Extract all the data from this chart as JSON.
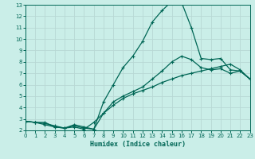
{
  "xlabel": "Humidex (Indice chaleur)",
  "bg_color": "#caeee8",
  "grid_color": "#b8d8d4",
  "line_color": "#006655",
  "xlim": [
    0,
    23
  ],
  "ylim": [
    2,
    13
  ],
  "xticks": [
    0,
    1,
    2,
    3,
    4,
    5,
    6,
    7,
    8,
    9,
    10,
    11,
    12,
    13,
    14,
    15,
    16,
    17,
    18,
    19,
    20,
    21,
    22,
    23
  ],
  "yticks": [
    2,
    3,
    4,
    5,
    6,
    7,
    8,
    9,
    10,
    11,
    12,
    13
  ],
  "curve_top_x": [
    0,
    1,
    2,
    3,
    4,
    5,
    6,
    7,
    8,
    9,
    10,
    11,
    12,
    13,
    14,
    15,
    16,
    17,
    18,
    19,
    20,
    21,
    22,
    23
  ],
  "curve_top_y": [
    2.8,
    2.7,
    2.7,
    2.3,
    2.2,
    2.4,
    2.2,
    2.1,
    4.5,
    6.0,
    7.5,
    8.5,
    9.8,
    11.5,
    12.5,
    13.3,
    13.2,
    11.0,
    8.3,
    8.2,
    8.3,
    7.3,
    7.2,
    6.5
  ],
  "curve_mid_x": [
    0,
    1,
    2,
    3,
    4,
    5,
    6,
    7,
    8,
    9,
    10,
    11,
    12,
    13,
    14,
    15,
    16,
    17,
    18,
    19,
    20,
    21,
    22,
    23
  ],
  "curve_mid_y": [
    2.8,
    2.7,
    2.6,
    2.4,
    2.2,
    2.3,
    2.1,
    2.7,
    3.5,
    4.2,
    4.8,
    5.2,
    5.5,
    5.8,
    6.2,
    6.5,
    6.8,
    7.0,
    7.2,
    7.4,
    7.6,
    7.8,
    7.3,
    6.5
  ],
  "curve_bot_x": [
    0,
    1,
    2,
    3,
    4,
    5,
    6,
    7,
    8,
    9,
    10,
    11,
    12,
    13,
    14,
    15,
    16,
    17,
    18,
    19,
    20,
    21,
    22,
    23
  ],
  "curve_bot_y": [
    2.8,
    2.7,
    2.5,
    2.3,
    2.2,
    2.5,
    2.3,
    2.1,
    3.5,
    4.5,
    5.0,
    5.4,
    5.8,
    6.5,
    7.2,
    8.0,
    8.5,
    8.2,
    7.5,
    7.3,
    7.4,
    7.0,
    7.2,
    6.5
  ]
}
